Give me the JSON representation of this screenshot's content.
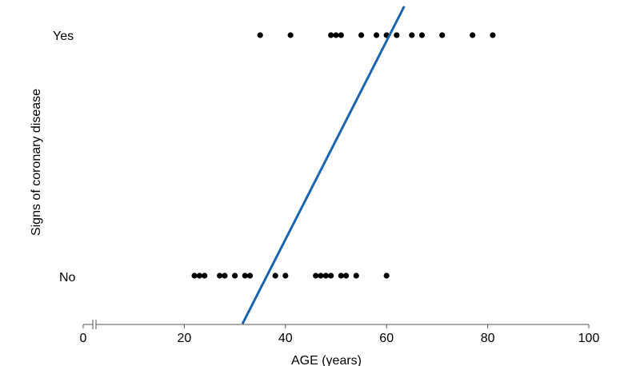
{
  "chart_data": {
    "type": "scatter",
    "title": "",
    "xlabel": "AGE (years)",
    "ylabel": "Signs of coronary disease",
    "xlim": [
      0,
      100
    ],
    "x_ticks": [
      "0",
      "20",
      "40",
      "60",
      "80",
      "100"
    ],
    "x_axis_break_after": 0,
    "y_categories": [
      "No",
      "Yes"
    ],
    "series": [
      {
        "category": "Yes",
        "x": [
          35,
          41,
          49,
          50,
          51,
          55,
          58,
          60,
          62,
          65,
          67,
          71,
          77,
          81
        ]
      },
      {
        "category": "No",
        "x": [
          22,
          23,
          24,
          27,
          28,
          30,
          32,
          33,
          38,
          40,
          46,
          47,
          48,
          49,
          51,
          52,
          54,
          60
        ]
      }
    ],
    "fit_line": {
      "x": [
        31.5,
        63.5
      ],
      "y": [
        -0.2,
        1.12
      ]
    },
    "marker_color": "#000000",
    "line_color": "#1a64b0",
    "grid": false,
    "legend": "none"
  }
}
